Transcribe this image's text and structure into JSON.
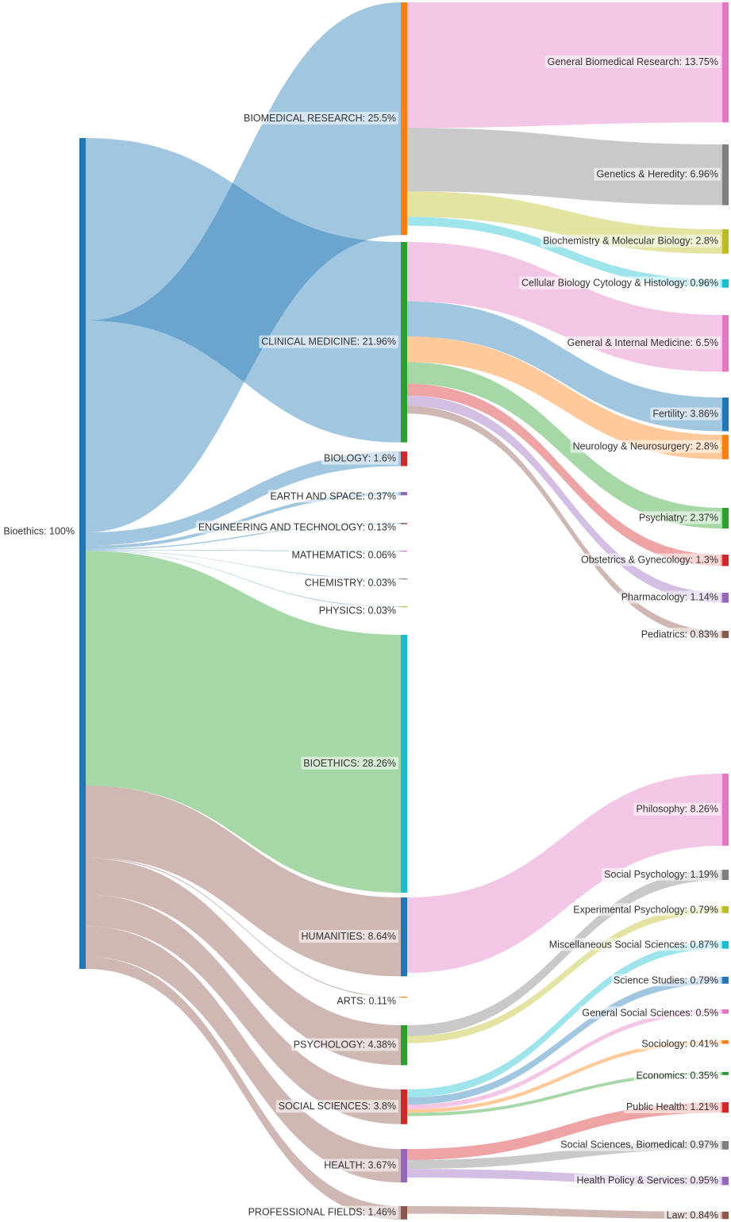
{
  "chart_data": {
    "type": "sankey",
    "title": "",
    "unit": "%",
    "root": {
      "id": "bioethics_root",
      "label": "Bioethics: 100%",
      "value": 100,
      "color": "#1f77b4"
    },
    "categories": [
      {
        "id": "biomed",
        "label": "BIOMEDICAL RESEARCH: 25.5%",
        "value": 25.5,
        "color": "#ff7f0e",
        "flow": "#1f77b4",
        "children": [
          {
            "label": "General Biomedical Research: 13.75%",
            "value": 13.75,
            "color": "#e377c2"
          },
          {
            "label": "Genetics & Heredity: 6.96%",
            "value": 6.96,
            "color": "#7f7f7f"
          },
          {
            "label": "Biochemistry & Molecular Biology: 2.8%",
            "value": 2.8,
            "color": "#bcbd22"
          },
          {
            "label": "Cellular Biology Cytology & Histology: 0.96%",
            "value": 0.96,
            "color": "#17becf"
          }
        ]
      },
      {
        "id": "clinical",
        "label": "CLINICAL MEDICINE: 21.96%",
        "value": 21.96,
        "color": "#2ca02c",
        "flow": "#1f77b4",
        "children": [
          {
            "label": "General & Internal Medicine: 6.5%",
            "value": 6.5,
            "color": "#e377c2"
          },
          {
            "label": "Fertility: 3.86%",
            "value": 3.86,
            "color": "#1f77b4"
          },
          {
            "label": "Neurology & Neurosurgery: 2.8%",
            "value": 2.8,
            "color": "#ff7f0e"
          },
          {
            "label": "Psychiatry: 2.37%",
            "value": 2.37,
            "color": "#2ca02c"
          },
          {
            "label": "Obstetrics & Gynecology: 1.3%",
            "value": 1.3,
            "color": "#d62728"
          },
          {
            "label": "Pharmacology: 1.14%",
            "value": 1.14,
            "color": "#9467bd"
          },
          {
            "label": "Pediatrics: 0.83%",
            "value": 0.83,
            "color": "#8c564b"
          }
        ]
      },
      {
        "id": "biology",
        "label": "BIOLOGY: 1.6%",
        "value": 1.6,
        "color": "#d62728",
        "flow": "#1f77b4",
        "children": []
      },
      {
        "id": "earth",
        "label": "EARTH AND SPACE: 0.37%",
        "value": 0.37,
        "color": "#9467bd",
        "flow": "#1f77b4",
        "children": []
      },
      {
        "id": "eng",
        "label": "ENGINEERING AND TECHNOLOGY: 0.13%",
        "value": 0.13,
        "color": "#8c564b",
        "flow": "#1f77b4",
        "children": []
      },
      {
        "id": "math",
        "label": "MATHEMATICS: 0.06%",
        "value": 0.06,
        "color": "#e377c2",
        "flow": "#1f77b4",
        "children": []
      },
      {
        "id": "chem",
        "label": "CHEMISTRY: 0.03%",
        "value": 0.03,
        "color": "#7f7f7f",
        "flow": "#1f77b4",
        "children": []
      },
      {
        "id": "phys",
        "label": "PHYSICS: 0.03%",
        "value": 0.03,
        "color": "#bcbd22",
        "flow": "#1f77b4",
        "children": []
      },
      {
        "id": "bioeth",
        "label": "BIOETHICS: 28.26%",
        "value": 28.26,
        "color": "#17becf",
        "flow": "#2ca02c",
        "children": []
      },
      {
        "id": "hum",
        "label": "HUMANITIES: 8.64%",
        "value": 8.64,
        "color": "#1f77b4",
        "flow": "#8c564b",
        "children": [
          {
            "label": "Philosophy: 8.26%",
            "value": 8.26,
            "color": "#e377c2"
          }
        ]
      },
      {
        "id": "arts",
        "label": "ARTS: 0.11%",
        "value": 0.11,
        "color": "#ff7f0e",
        "flow": "#8c564b",
        "children": []
      },
      {
        "id": "psych",
        "label": "PSYCHOLOGY: 4.38%",
        "value": 4.38,
        "color": "#2ca02c",
        "flow": "#8c564b",
        "children": [
          {
            "label": "Social Psychology: 1.19%",
            "value": 1.19,
            "color": "#7f7f7f"
          },
          {
            "label": "Experimental Psychology: 0.79%",
            "value": 0.79,
            "color": "#bcbd22"
          }
        ]
      },
      {
        "id": "socsci",
        "label": "SOCIAL SCIENCES: 3.8%",
        "value": 3.8,
        "color": "#d62728",
        "flow": "#8c564b",
        "children": [
          {
            "label": "Miscellaneous Social Sciences: 0.87%",
            "value": 0.87,
            "color": "#17becf"
          },
          {
            "label": "Science Studies: 0.79%",
            "value": 0.79,
            "color": "#1f77b4"
          },
          {
            "label": "General Social Sciences: 0.5%",
            "value": 0.5,
            "color": "#e377c2"
          },
          {
            "label": "Sociology: 0.41%",
            "value": 0.41,
            "color": "#ff7f0e"
          },
          {
            "label": "Economics: 0.35%",
            "value": 0.35,
            "color": "#2ca02c"
          }
        ]
      },
      {
        "id": "health",
        "label": "HEALTH: 3.67%",
        "value": 3.67,
        "color": "#9467bd",
        "flow": "#8c564b",
        "children": [
          {
            "label": "Public Health: 1.21%",
            "value": 1.21,
            "color": "#d62728"
          },
          {
            "label": "Social Sciences, Biomedical: 0.97%",
            "value": 0.97,
            "color": "#7f7f7f"
          },
          {
            "label": "Health Policy & Services: 0.95%",
            "value": 0.95,
            "color": "#9467bd"
          }
        ]
      },
      {
        "id": "prof",
        "label": "PROFESSIONAL FIELDS: 1.46%",
        "value": 1.46,
        "color": "#8c564b",
        "flow": "#8c564b",
        "children": [
          {
            "label": "Law: 0.84%",
            "value": 0.84,
            "color": "#8c564b"
          }
        ]
      }
    ]
  }
}
